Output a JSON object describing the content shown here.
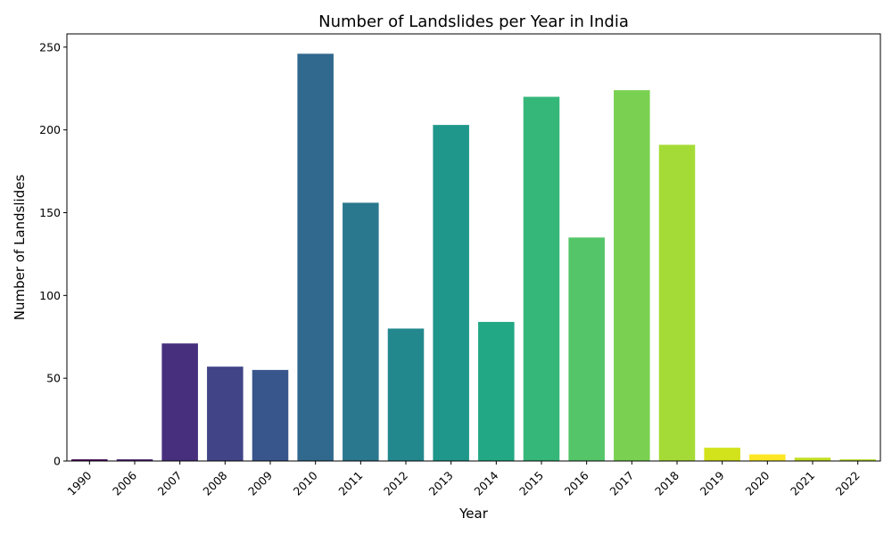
{
  "chart_data": {
    "type": "bar",
    "title": "Number of Landslides per Year in India",
    "xlabel": "Year",
    "ylabel": "Number of Landslides",
    "categories": [
      "1990",
      "2006",
      "2007",
      "2008",
      "2009",
      "2010",
      "2011",
      "2012",
      "2013",
      "2014",
      "2015",
      "2016",
      "2017",
      "2018",
      "2019",
      "2020",
      "2021",
      "2022"
    ],
    "values": [
      1,
      1,
      71,
      57,
      55,
      246,
      156,
      80,
      203,
      84,
      220,
      135,
      224,
      191,
      8,
      4,
      2,
      1
    ],
    "ylim": [
      0,
      258
    ],
    "yticks": [
      0,
      50,
      100,
      150,
      200,
      250
    ],
    "colors": [
      "#440154",
      "#481a6c",
      "#472f7d",
      "#414487",
      "#39568c",
      "#31688e",
      "#2a788e",
      "#23888e",
      "#1f988b",
      "#22a884",
      "#35b779",
      "#54c568",
      "#7ad151",
      "#a5db36",
      "#d2e21b",
      "#fde725",
      "#c2df23",
      "#b5de2b"
    ],
    "grid": false,
    "legend": "none"
  }
}
